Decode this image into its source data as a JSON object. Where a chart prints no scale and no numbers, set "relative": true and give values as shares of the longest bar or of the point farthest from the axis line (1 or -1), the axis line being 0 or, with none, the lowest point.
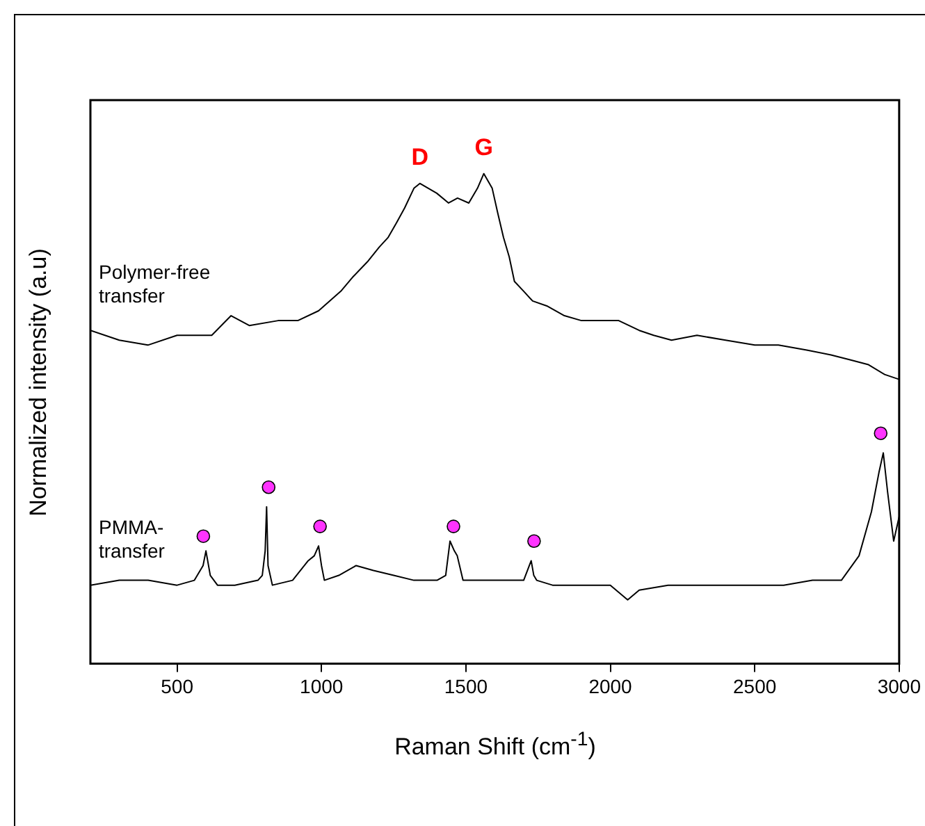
{
  "chart_data": {
    "type": "line",
    "relative": true,
    "xlabel": "Raman Shift (cm$^{-1}$)",
    "ylabel": "Normalized intensity (a.u)",
    "xlim": [
      200,
      3000
    ],
    "xticks": [
      500,
      1000,
      1500,
      2000,
      2500,
      3000
    ],
    "annotations": [
      {
        "text": "D",
        "x": 1341,
        "y": 0.98
      },
      {
        "text": "G",
        "x": 1562,
        "y": 1.0
      }
    ],
    "series": [
      {
        "name": "Polymer-free transfer",
        "color": "#000000",
        "marker": "none",
        "x": [
          200,
          300,
          399,
          500,
          620,
          687,
          750,
          850,
          918,
          990,
          1067,
          1110,
          1159,
          1200,
          1231,
          1260,
          1288,
          1320,
          1341,
          1370,
          1399,
          1440,
          1471,
          1510,
          1540,
          1562,
          1591,
          1610,
          1630,
          1650,
          1668,
          1700,
          1731,
          1780,
          1841,
          1900,
          1960,
          2029,
          2100,
          2150,
          2212,
          2300,
          2399,
          2500,
          2582,
          2680,
          2764,
          2830,
          2894,
          2950,
          3000
        ],
        "values": [
          0.68,
          0.66,
          0.65,
          0.67,
          0.67,
          0.71,
          0.69,
          0.7,
          0.7,
          0.72,
          0.76,
          0.79,
          0.82,
          0.85,
          0.87,
          0.9,
          0.93,
          0.97,
          0.98,
          0.97,
          0.96,
          0.94,
          0.95,
          0.94,
          0.97,
          1.0,
          0.97,
          0.92,
          0.87,
          0.83,
          0.78,
          0.76,
          0.74,
          0.73,
          0.71,
          0.7,
          0.7,
          0.7,
          0.68,
          0.67,
          0.66,
          0.67,
          0.66,
          0.65,
          0.65,
          0.64,
          0.63,
          0.62,
          0.61,
          0.59,
          0.58
        ]
      },
      {
        "name": "PMMA-transfer",
        "color": "#000000",
        "marker": "none",
        "x": [
          200,
          300,
          400,
          500,
          560,
          590,
          600,
          615,
          640,
          700,
          780,
          795,
          805,
          810,
          815,
          830,
          900,
          954,
          975,
          990,
          1000,
          1010,
          1060,
          1120,
          1180,
          1250,
          1320,
          1400,
          1430,
          1445,
          1460,
          1470,
          1490,
          1550,
          1650,
          1700,
          1726,
          1735,
          1745,
          1800,
          1900,
          2000,
          2060,
          2100,
          2200,
          2300,
          2400,
          2500,
          2600,
          2700,
          2800,
          2861,
          2904,
          2930,
          2945,
          2960,
          2981,
          3000
        ],
        "values": [
          0.16,
          0.17,
          0.17,
          0.16,
          0.17,
          0.2,
          0.23,
          0.18,
          0.16,
          0.16,
          0.17,
          0.18,
          0.23,
          0.32,
          0.2,
          0.16,
          0.17,
          0.21,
          0.22,
          0.24,
          0.2,
          0.17,
          0.18,
          0.2,
          0.19,
          0.18,
          0.17,
          0.17,
          0.18,
          0.25,
          0.23,
          0.22,
          0.17,
          0.17,
          0.17,
          0.17,
          0.21,
          0.18,
          0.17,
          0.16,
          0.16,
          0.16,
          0.13,
          0.15,
          0.16,
          0.16,
          0.16,
          0.16,
          0.16,
          0.17,
          0.17,
          0.22,
          0.31,
          0.39,
          0.43,
          0.35,
          0.25,
          0.3
        ]
      },
      {
        "type": "scatter",
        "color": "#ff33ff",
        "marker": "circle",
        "x": [
          591,
          817,
          995,
          1457,
          1736,
          2936
        ],
        "values": [
          0.26,
          0.36,
          0.28,
          0.28,
          0.25,
          0.47
        ]
      }
    ]
  }
}
